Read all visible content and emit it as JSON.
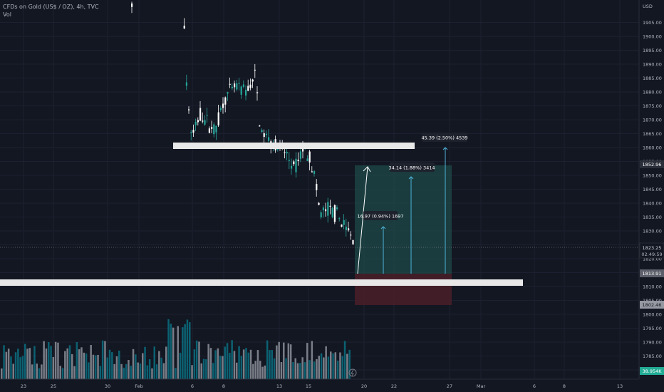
{
  "legend": {
    "symbol": "CFDs on Gold (US$ / OZ), 4h, TVC",
    "volume": "Vol"
  },
  "price_scale": {
    "currency": "USD",
    "ticks": [
      "1905.00",
      "1900.00",
      "1895.00",
      "1890.00",
      "1885.00",
      "1880.00",
      "1875.00",
      "1870.00",
      "1865.00",
      "1860.00",
      "1855.00",
      "1850.00",
      "1845.00",
      "1840.00",
      "1835.00",
      "1830.00",
      "1825.00",
      "1820.00",
      "1815.00",
      "1810.00",
      "1805.00",
      "1800.00",
      "1795.00",
      "1790.00",
      "1785.00",
      "1780.00"
    ]
  },
  "time_scale": {
    "ticks": [
      "23",
      "25",
      "30",
      "Feb",
      "6",
      "8",
      "13",
      "15",
      "20",
      "22",
      "27",
      "Mar",
      "6",
      "8",
      "13"
    ]
  },
  "price_labels": {
    "target_price": "1852.96",
    "last_price": "1823.25",
    "countdown": "02:49:59",
    "entry_price": "1813.91",
    "stop_price": "1802.46",
    "volume_value": "38.954K"
  },
  "measurements": [
    {
      "label": "16.97 (0.94%) 1697"
    },
    {
      "label": "34.14 (1.88%) 3414"
    },
    {
      "label": "45.39 (2.50%) 4539"
    }
  ],
  "colors": {
    "background": "#131722",
    "up": "#26a69a",
    "down": "#ffffff",
    "target_zone": "#1e4a48",
    "stop_zone": "#4a1e28",
    "zone_bar": "#e8e8e8"
  }
}
